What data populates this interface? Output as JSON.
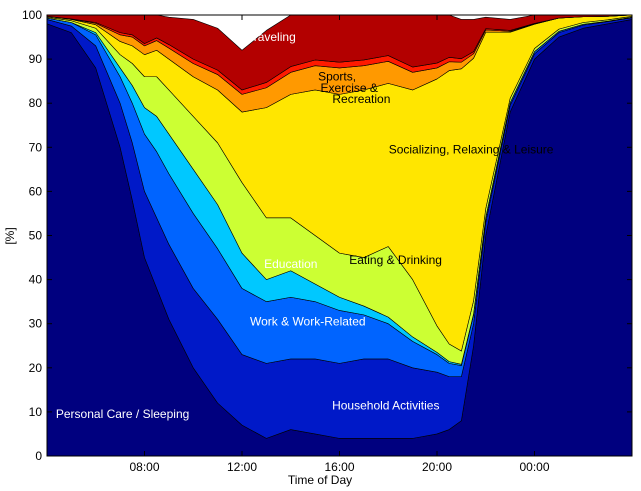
{
  "chart_data": {
    "type": "area",
    "title": "",
    "xlabel": "Time of Day",
    "ylabel": "[%]",
    "xlim": [
      4,
      28
    ],
    "ylim": [
      0,
      100
    ],
    "grid": false,
    "legend": "none",
    "x_ticks": [
      {
        "value": 8,
        "label": "08:00"
      },
      {
        "value": 12,
        "label": "12:00"
      },
      {
        "value": 16,
        "label": "16:00"
      },
      {
        "value": 20,
        "label": "20:00"
      },
      {
        "value": 24,
        "label": "00:00"
      }
    ],
    "y_ticks": [
      0,
      10,
      20,
      30,
      40,
      50,
      60,
      70,
      80,
      90,
      100
    ],
    "x": [
      4,
      5,
      6,
      7,
      7.5,
      8,
      8.5,
      9,
      10,
      11,
      12,
      13,
      14,
      15,
      16,
      17,
      18,
      19,
      20,
      20.5,
      21,
      21.5,
      22,
      23,
      24,
      25,
      26,
      27,
      28
    ],
    "series": [
      {
        "name": "Personal Care / Sleeping",
        "color": "#00007f",
        "values": [
          98,
          96,
          88,
          70,
          58,
          45,
          38,
          31,
          20,
          12,
          7,
          4,
          6,
          5,
          4,
          4,
          4,
          4,
          5,
          6,
          8,
          25,
          50,
          78,
          90,
          95,
          97,
          98,
          99
        ]
      },
      {
        "name": "Household Activities",
        "color": "#0019c8",
        "values": [
          1,
          1.5,
          5,
          10,
          13,
          15,
          16,
          17,
          18,
          19,
          16,
          17,
          16,
          17,
          17,
          18,
          18,
          16,
          14,
          12,
          10,
          5,
          3,
          1.5,
          1.2,
          1,
          0.7,
          0.5,
          0.4
        ]
      },
      {
        "name": "Work & Work-Related",
        "color": "#0064ff",
        "values": [
          0.3,
          0.8,
          2.5,
          6,
          9,
          13,
          15,
          16,
          17,
          16,
          15,
          14,
          14,
          13,
          12,
          10,
          8,
          6,
          4,
          3,
          2.5,
          2,
          1,
          0.6,
          0.5,
          0.3,
          0.2,
          0.1,
          0.1
        ]
      },
      {
        "name": "Education",
        "color": "#00c8ff",
        "values": [
          0,
          0,
          0.5,
          2,
          4,
          6,
          8,
          9,
          10,
          10,
          8,
          5,
          6,
          4,
          3,
          2,
          1.5,
          1,
          0.5,
          0.4,
          0.3,
          0.2,
          0.1,
          0,
          0,
          0,
          0,
          0,
          0
        ]
      },
      {
        "name": "Eating & Drinking",
        "color": "#ccff33",
        "values": [
          0.2,
          0.4,
          1,
          3,
          5,
          7,
          9,
          10,
          12,
          14,
          16,
          14,
          12,
          11,
          10,
          11,
          16,
          13,
          6,
          4,
          3,
          3,
          2,
          1,
          0.7,
          0.5,
          0.4,
          0.3,
          0.2
        ]
      },
      {
        "name": "Socializing, Relaxing & Leisure",
        "color": "#ffe600",
        "values": [
          0.2,
          0.3,
          0.8,
          3,
          4,
          5,
          6,
          7,
          9,
          12,
          16,
          25,
          28,
          33,
          36,
          38,
          37,
          43,
          56,
          62,
          64,
          55,
          40,
          15,
          5.5,
          2.5,
          1.3,
          0.8,
          0.4
        ]
      },
      {
        "name": "Sports, Exercise & Recreation",
        "color": "#ff9900",
        "values": [
          0,
          0.1,
          0.3,
          1.5,
          2,
          2,
          2.2,
          2.5,
          3,
          3.5,
          4,
          4.5,
          5,
          5.5,
          6,
          5.5,
          5,
          4,
          2.5,
          2,
          1.5,
          1,
          0.5,
          0.2,
          0.1,
          0,
          0,
          0,
          0
        ]
      },
      {
        "name": "",
        "color": "#ff1a00",
        "values": [
          0,
          0,
          0.2,
          0.5,
          0.5,
          0.5,
          0.6,
          0.8,
          1,
          1,
          1,
          1.2,
          1.3,
          1.3,
          1.3,
          1.3,
          1.3,
          1.2,
          1.1,
          1,
          0.8,
          0.5,
          0.3,
          0.2,
          0.1,
          0,
          0,
          0,
          0
        ]
      },
      {
        "name": "Traveling",
        "color": "#b30000",
        "values": [
          0.3,
          1,
          2,
          4,
          4.5,
          8,
          5.4,
          6.2,
          9,
          9.5,
          9,
          11.8,
          11.7,
          13.2,
          10.7,
          10.2,
          12.7,
          11.8,
          10.9,
          9.6,
          8.9,
          7.3,
          2.6,
          2.5,
          2.1,
          1,
          0.4,
          0.3,
          0.9
        ]
      }
    ],
    "annotations": [
      {
        "text": "Traveling",
        "x": 13.2,
        "y": 95,
        "color": "#ffffff"
      },
      {
        "text": "Sports,",
        "x": 15.9,
        "y": 86,
        "color": "#000000"
      },
      {
        "text": "Exercise &",
        "x": 16.4,
        "y": 83.5,
        "color": "#000000"
      },
      {
        "text": "Recreation",
        "x": 16.9,
        "y": 81,
        "color": "#000000"
      },
      {
        "text": "Socializing, Relaxing & Leisure",
        "x": 21.4,
        "y": 69.5,
        "color": "#000000"
      },
      {
        "text": "Eating & Drinking",
        "x": 18.3,
        "y": 44.5,
        "color": "#000000"
      },
      {
        "text": "Education",
        "x": 14.0,
        "y": 43.5,
        "color": "#ffffff"
      },
      {
        "text": "Work & Work-Related",
        "x": 14.7,
        "y": 30.5,
        "color": "#ffffff"
      },
      {
        "text": "Household Activities",
        "x": 17.9,
        "y": 11.5,
        "color": "#ffffff"
      },
      {
        "text": "Personal Care / Sleeping",
        "x": 7.1,
        "y": 9.5,
        "color": "#ffffff"
      }
    ]
  }
}
